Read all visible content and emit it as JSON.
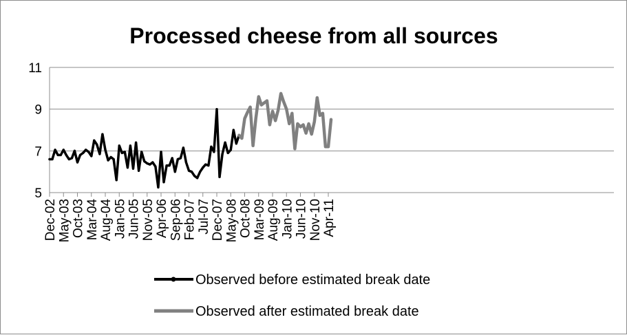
{
  "chart_data": {
    "type": "line",
    "title": "Processed cheese from all sources",
    "xlabel": "",
    "ylabel": "",
    "ylim": [
      5,
      11
    ],
    "yticks": [
      5,
      7,
      9,
      11
    ],
    "grid": true,
    "legend_position": "bottom",
    "x_start": "Dec-02",
    "x_tick_labels": [
      "Dec-02",
      "May-03",
      "Oct-03",
      "Mar-04",
      "Aug-04",
      "Jan-05",
      "Jun-05",
      "Nov-05",
      "Apr-06",
      "Sep-06",
      "Feb-07",
      "Jul-07",
      "Dec-07",
      "May-08",
      "Oct-08",
      "Mar-09",
      "Aug-09",
      "Jan-10",
      "Jun-10",
      "Nov-10",
      "Apr-11"
    ],
    "series": [
      {
        "name": "Observed before estimated break date",
        "color": "#000000",
        "marker": "dot",
        "start": "Dec-02",
        "values": [
          6.6,
          6.6,
          7.05,
          6.8,
          6.8,
          7.05,
          6.8,
          6.6,
          6.65,
          7.0,
          6.45,
          6.8,
          6.9,
          7.05,
          6.95,
          6.75,
          7.5,
          7.3,
          6.85,
          7.8,
          7.05,
          6.55,
          6.7,
          6.6,
          5.6,
          7.25,
          6.9,
          6.95,
          6.2,
          7.25,
          6.15,
          7.4,
          6.05,
          6.95,
          6.5,
          6.4,
          6.35,
          6.45,
          6.25,
          5.25,
          6.95,
          5.5,
          6.3,
          6.3,
          6.65,
          6.0,
          6.6,
          6.65,
          7.15,
          6.45,
          6.05,
          6.0,
          5.8,
          5.7,
          6.0,
          6.2,
          6.35,
          6.3,
          7.2,
          6.95,
          9.0,
          5.75,
          6.85,
          7.4,
          6.9,
          7.05,
          8.0,
          7.35,
          7.75
        ]
      },
      {
        "name": "Observed after estimated break date",
        "color": "#808080",
        "marker": "none",
        "start": "Aug-08",
        "values": [
          7.75,
          7.6,
          8.55,
          8.85,
          9.1,
          7.25,
          8.55,
          9.6,
          9.2,
          9.3,
          9.4,
          8.25,
          8.9,
          8.45,
          8.95,
          9.75,
          9.35,
          9.0,
          8.3,
          8.8,
          7.1,
          8.3,
          8.15,
          8.25,
          7.85,
          8.3,
          7.8,
          8.4,
          9.55,
          8.7,
          8.8,
          7.2,
          7.2,
          8.5
        ]
      }
    ]
  }
}
